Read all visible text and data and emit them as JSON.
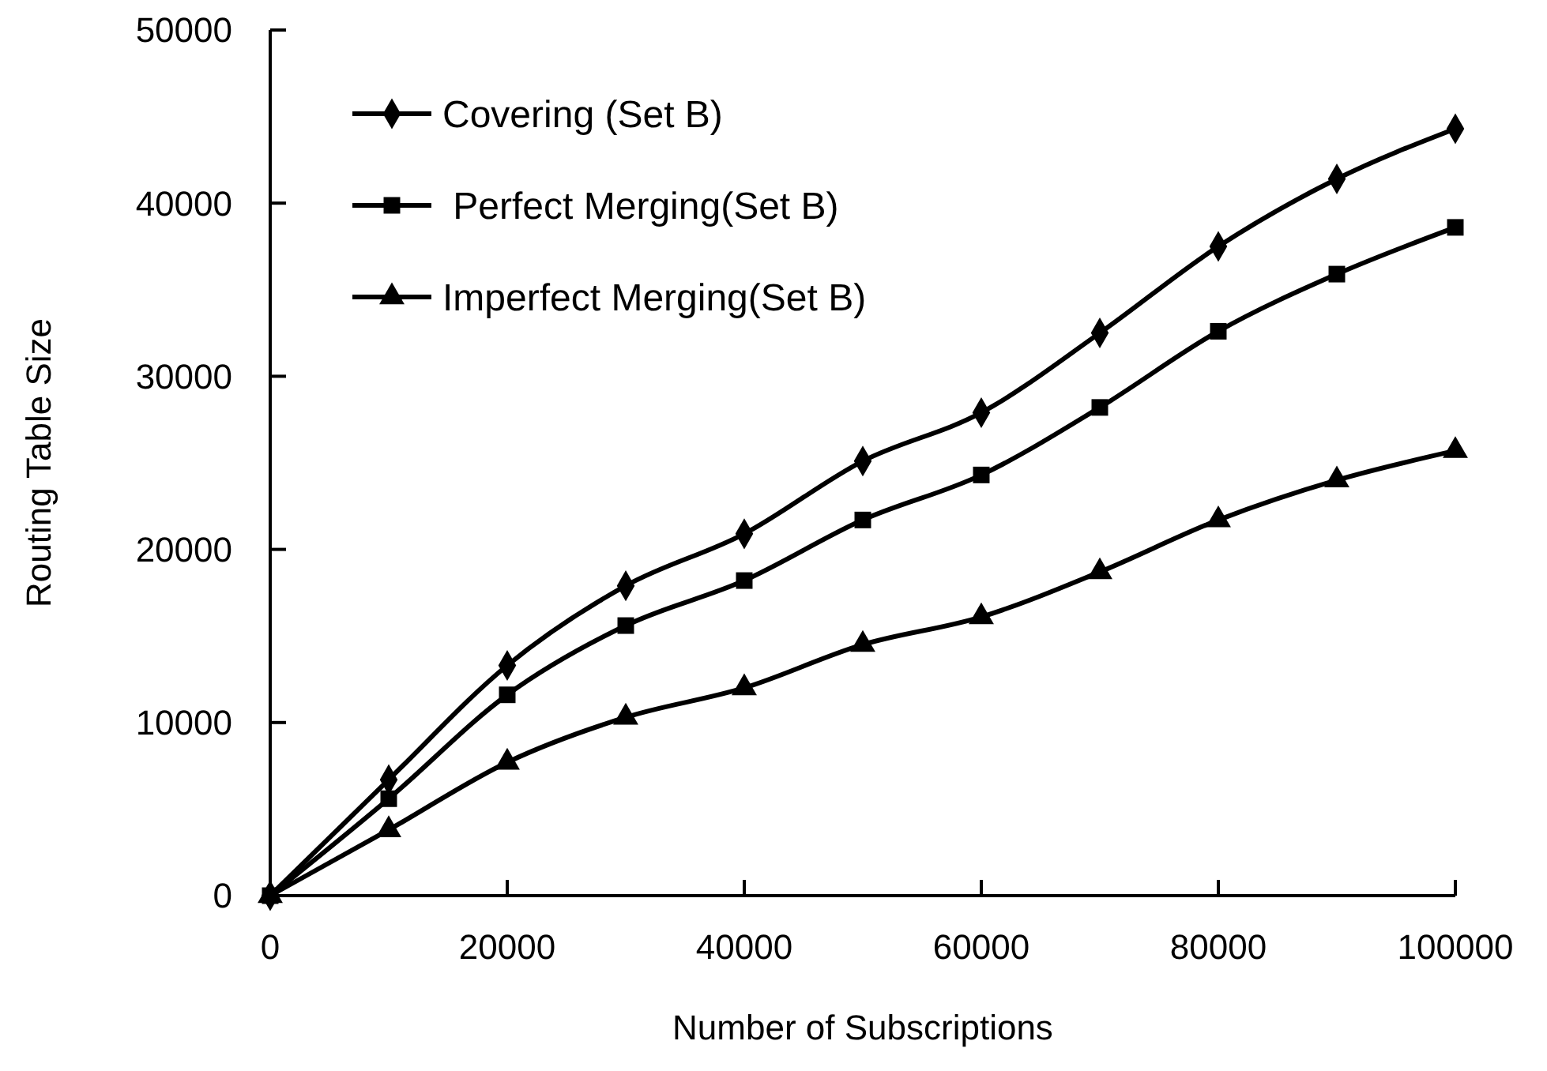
{
  "chart_data": {
    "type": "line",
    "xlabel": "Number of Subscriptions",
    "ylabel": "Routing Table Size",
    "x": [
      0,
      10000,
      20000,
      30000,
      40000,
      50000,
      60000,
      70000,
      80000,
      90000,
      100000
    ],
    "xlim": [
      0,
      100000
    ],
    "xticks": [
      0,
      20000,
      40000,
      60000,
      80000,
      100000
    ],
    "ylim": [
      0,
      50000
    ],
    "yticks": [
      0,
      10000,
      20000,
      30000,
      40000,
      50000
    ],
    "grid": false,
    "legend": "top left",
    "line_style": "solid",
    "series": [
      {
        "name": "Covering (Set B)",
        "color": "#000000",
        "marker": "diamond",
        "values": [
          0,
          6700,
          13300,
          17900,
          20900,
          25100,
          27900,
          32500,
          37500,
          41400,
          44300
        ]
      },
      {
        "name": " Perfect Merging(Set B)",
        "color": "#000000",
        "marker": "square",
        "values": [
          0,
          5600,
          11600,
          15600,
          18200,
          21700,
          24300,
          28200,
          32600,
          35900,
          38600
        ]
      },
      {
        "name": "Imperfect Merging(Set B)",
        "color": "#000000",
        "marker": "triangle",
        "values": [
          0,
          3800,
          7700,
          10300,
          12000,
          14500,
          16100,
          18700,
          21700,
          24000,
          25700
        ]
      }
    ]
  }
}
